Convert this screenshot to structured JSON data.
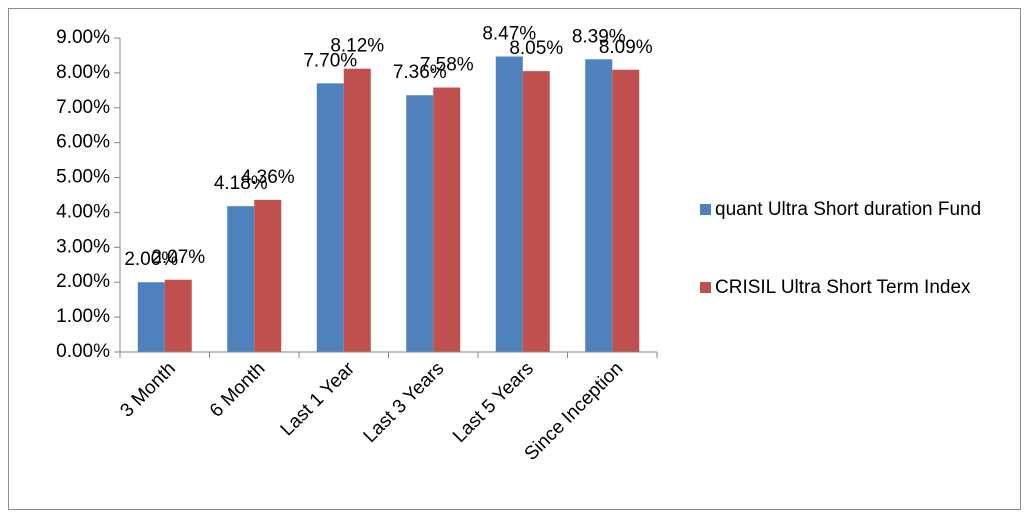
{
  "chart_data": {
    "type": "bar",
    "categories": [
      "3 Month",
      "6 Month",
      "Last 1 Year",
      "Last 3 Years",
      "Last 5 Years",
      "Since Inception"
    ],
    "series": [
      {
        "name": "quant Ultra Short duration Fund",
        "color": "#4f81bd",
        "values": [
          2.0,
          4.18,
          7.7,
          7.36,
          8.47,
          8.39
        ],
        "value_labels": [
          "2.00%",
          "4.18%",
          "7.70%",
          "7.36%",
          "8.47%",
          "8.39%"
        ]
      },
      {
        "name": "CRISIL Ultra Short Term Index",
        "color": "#c0504d",
        "values": [
          2.07,
          4.36,
          8.12,
          7.58,
          8.05,
          8.09
        ],
        "value_labels": [
          "2.07%",
          "4.36%",
          "8.12%",
          "7.58%",
          "8.05%",
          "8.09%"
        ]
      }
    ],
    "ylim": [
      0,
      9
    ],
    "yticks": [
      {
        "value": 0,
        "label": "0.00%"
      },
      {
        "value": 1,
        "label": "1.00%"
      },
      {
        "value": 2,
        "label": "2.00%"
      },
      {
        "value": 3,
        "label": "3.00%"
      },
      {
        "value": 4,
        "label": "4.00%"
      },
      {
        "value": 5,
        "label": "5.00%"
      },
      {
        "value": 6,
        "label": "6.00%"
      },
      {
        "value": 7,
        "label": "7.00%"
      },
      {
        "value": 8,
        "label": "8.00%"
      },
      {
        "value": 9,
        "label": "9.00%"
      }
    ],
    "grid": false,
    "legend": "right"
  }
}
